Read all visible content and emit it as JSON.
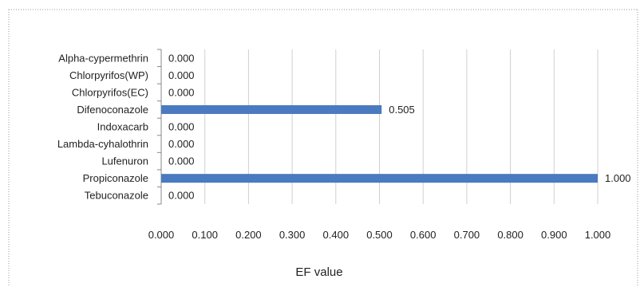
{
  "chart_data": {
    "type": "bar",
    "orientation": "horizontal",
    "categories": [
      "Alpha-cypermethrin",
      "Chlorpyrifos(WP)",
      "Chlorpyrifos(EC)",
      "Difenoconazole",
      "Indoxacarb",
      "Lambda-cyhalothrin",
      "Lufenuron",
      "Propiconazole",
      "Tebuconazole"
    ],
    "values": [
      0.0,
      0.0,
      0.0,
      0.505,
      0.0,
      0.0,
      0.0,
      1.0,
      0.0
    ],
    "data_labels": [
      "0.000",
      "0.000",
      "0.000",
      "0.505",
      "0.000",
      "0.000",
      "0.000",
      "1.000",
      "0.000"
    ],
    "xticks": [
      "0.000",
      "0.100",
      "0.200",
      "0.300",
      "0.400",
      "0.500",
      "0.600",
      "0.700",
      "0.800",
      "0.900",
      "1.000"
    ],
    "xlim": [
      0,
      1
    ],
    "xlabel": "EF value",
    "ylabel": "",
    "title": "",
    "grid": "vertical",
    "legend": "none",
    "colors": {
      "bar": "#4a7ac0",
      "grid": "#d0d0d0",
      "axis": "#888888",
      "frame": "#9a9a9a"
    }
  }
}
